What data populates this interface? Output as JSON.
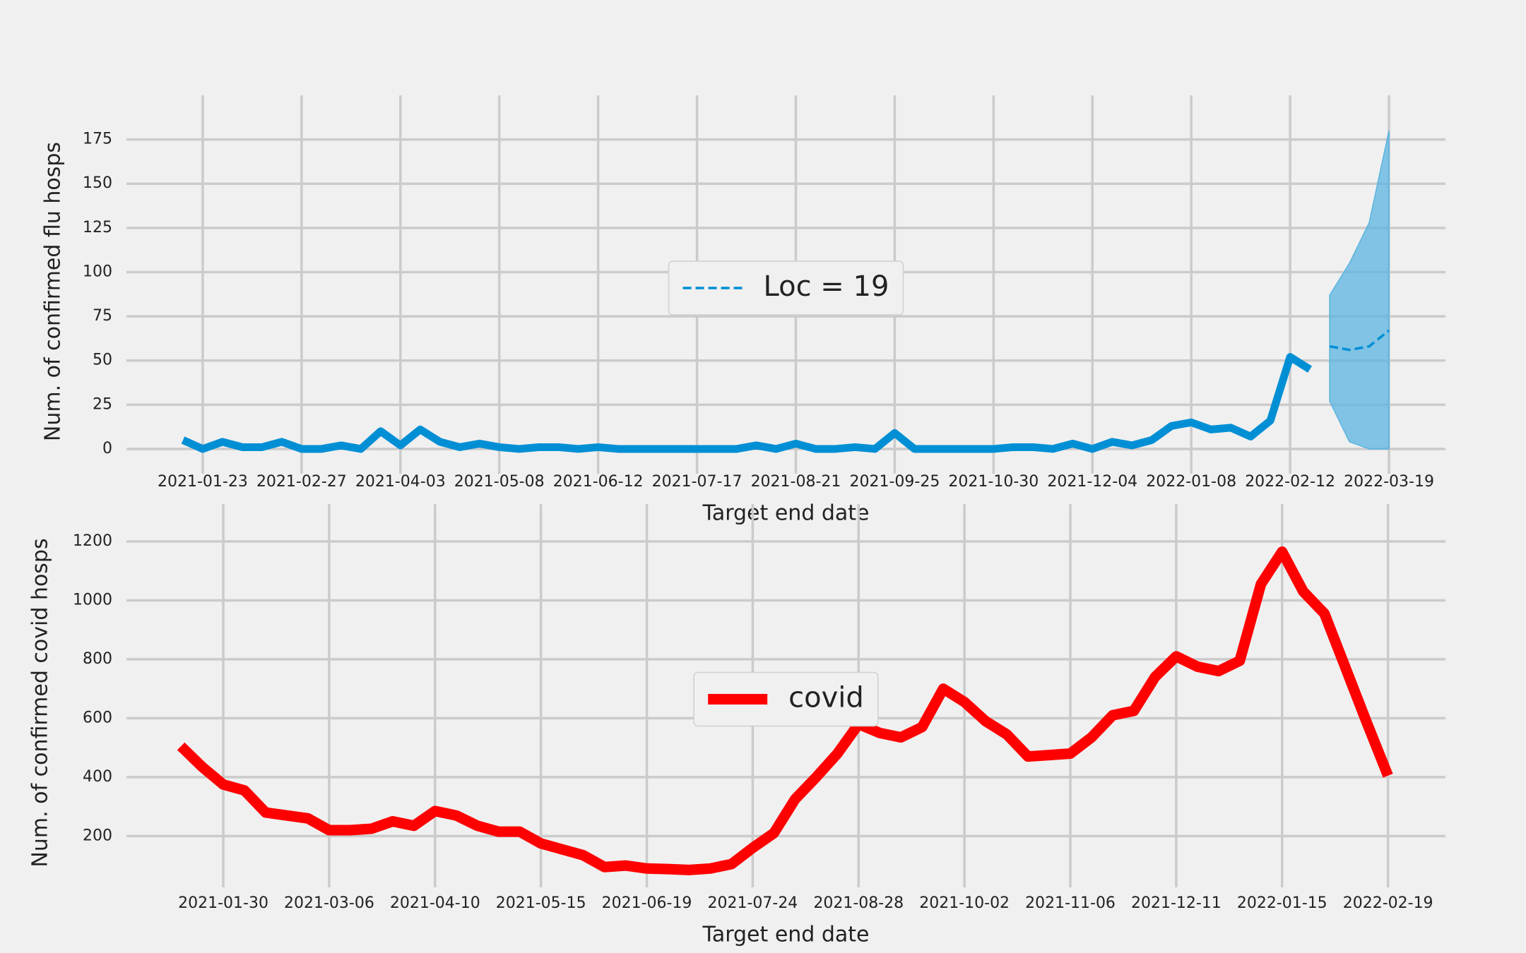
{
  "chart_data": [
    {
      "type": "line",
      "xlabel": "Target end date",
      "ylabel": "Num. of confirmed flu hosps",
      "xlim": [
        "2020-12-27",
        "2022-04-08"
      ],
      "ylim": [
        -10,
        188
      ],
      "xticks": [
        "2021-01-23",
        "2021-02-27",
        "2021-04-03",
        "2021-05-08",
        "2021-06-12",
        "2021-07-17",
        "2021-08-21",
        "2021-09-25",
        "2021-10-30",
        "2021-12-04",
        "2022-01-08",
        "2022-02-12",
        "2022-03-19"
      ],
      "yticks": [
        0,
        25,
        50,
        75,
        100,
        125,
        150,
        175
      ],
      "grid": true,
      "legend": "center",
      "series": [
        {
          "color": "#008fd5",
          "style": "solid",
          "x": [
            "2021-01-16",
            "2021-01-23",
            "2021-01-30",
            "2021-02-06",
            "2021-02-13",
            "2021-02-20",
            "2021-02-27",
            "2021-03-06",
            "2021-03-13",
            "2021-03-20",
            "2021-03-27",
            "2021-04-03",
            "2021-04-10",
            "2021-04-17",
            "2021-04-24",
            "2021-05-01",
            "2021-05-08",
            "2021-05-15",
            "2021-05-22",
            "2021-05-29",
            "2021-06-05",
            "2021-06-12",
            "2021-06-19",
            "2021-06-26",
            "2021-07-03",
            "2021-07-10",
            "2021-07-17",
            "2021-07-24",
            "2021-07-31",
            "2021-08-07",
            "2021-08-14",
            "2021-08-21",
            "2021-08-28",
            "2021-09-04",
            "2021-09-11",
            "2021-09-18",
            "2021-09-25",
            "2021-10-02",
            "2021-10-09",
            "2021-10-16",
            "2021-10-23",
            "2021-10-30",
            "2021-11-06",
            "2021-11-13",
            "2021-11-20",
            "2021-11-27",
            "2021-12-04",
            "2021-12-11",
            "2021-12-18",
            "2021-12-25",
            "2022-01-01",
            "2022-01-08",
            "2022-01-15",
            "2022-01-22",
            "2022-01-29",
            "2022-02-05",
            "2022-02-12",
            "2022-02-19"
          ],
          "values": [
            5,
            0,
            4,
            1,
            1,
            4,
            0,
            0,
            2,
            0,
            10,
            2,
            11,
            4,
            1,
            3,
            1,
            0,
            1,
            1,
            0,
            1,
            0,
            0,
            0,
            0,
            0,
            0,
            0,
            2,
            0,
            3,
            0,
            0,
            1,
            0,
            9,
            0,
            0,
            0,
            0,
            0,
            1,
            1,
            0,
            3,
            0,
            4,
            2,
            5,
            13,
            15,
            11,
            12,
            7,
            16,
            52,
            45
          ]
        },
        {
          "name": "Loc = 19",
          "color": "#008fd5",
          "style": "dashed",
          "band_color": "#5bb4e0",
          "x": [
            "2022-02-26",
            "2022-03-05",
            "2022-03-12",
            "2022-03-19"
          ],
          "values": [
            58,
            56,
            58,
            67
          ],
          "lower": [
            27,
            4,
            0,
            0
          ],
          "upper": [
            87,
            105,
            128,
            180
          ]
        }
      ]
    },
    {
      "type": "line",
      "xlabel": "Target end date",
      "ylabel": "Num. of confirmed covid hosps",
      "xlim": [
        "2020-12-29",
        "2022-03-10"
      ],
      "ylim": [
        50,
        1255
      ],
      "xticks": [
        "2021-01-30",
        "2021-03-06",
        "2021-04-10",
        "2021-05-15",
        "2021-06-19",
        "2021-07-24",
        "2021-08-28",
        "2021-10-02",
        "2021-11-06",
        "2021-12-11",
        "2022-01-15",
        "2022-02-19"
      ],
      "yticks": [
        200,
        400,
        600,
        800,
        1000,
        1200
      ],
      "grid": true,
      "legend": "center",
      "series": [
        {
          "name": "covid",
          "color": "#ff0000",
          "style": "solid",
          "x": [
            "2021-01-16",
            "2021-01-23",
            "2021-01-30",
            "2021-02-06",
            "2021-02-13",
            "2021-02-20",
            "2021-02-27",
            "2021-03-06",
            "2021-03-13",
            "2021-03-20",
            "2021-03-27",
            "2021-04-03",
            "2021-04-10",
            "2021-04-17",
            "2021-04-24",
            "2021-05-01",
            "2021-05-08",
            "2021-05-15",
            "2021-05-22",
            "2021-05-29",
            "2021-06-05",
            "2021-06-12",
            "2021-06-19",
            "2021-06-26",
            "2021-07-03",
            "2021-07-10",
            "2021-07-17",
            "2021-07-24",
            "2021-07-31",
            "2021-08-07",
            "2021-08-14",
            "2021-08-21",
            "2021-08-28",
            "2021-09-04",
            "2021-09-11",
            "2021-09-18",
            "2021-09-25",
            "2021-10-02",
            "2021-10-09",
            "2021-10-16",
            "2021-10-23",
            "2021-10-30",
            "2021-11-06",
            "2021-11-13",
            "2021-11-20",
            "2021-11-27",
            "2021-12-04",
            "2021-12-11",
            "2021-12-18",
            "2021-12-25",
            "2022-01-01",
            "2022-01-08",
            "2022-01-15",
            "2022-01-22",
            "2022-01-29",
            "2022-02-05",
            "2022-02-12",
            "2022-02-19"
          ],
          "values": [
            505,
            435,
            375,
            355,
            280,
            270,
            260,
            220,
            220,
            225,
            250,
            235,
            285,
            270,
            235,
            215,
            215,
            175,
            155,
            135,
            95,
            100,
            90,
            88,
            85,
            90,
            105,
            160,
            210,
            325,
            400,
            480,
            580,
            550,
            535,
            570,
            700,
            655,
            590,
            545,
            470,
            475,
            480,
            535,
            610,
            625,
            740,
            810,
            775,
            760,
            795,
            1055,
            1165,
            1030,
            955,
            770,
            585,
            405
          ]
        }
      ]
    }
  ]
}
